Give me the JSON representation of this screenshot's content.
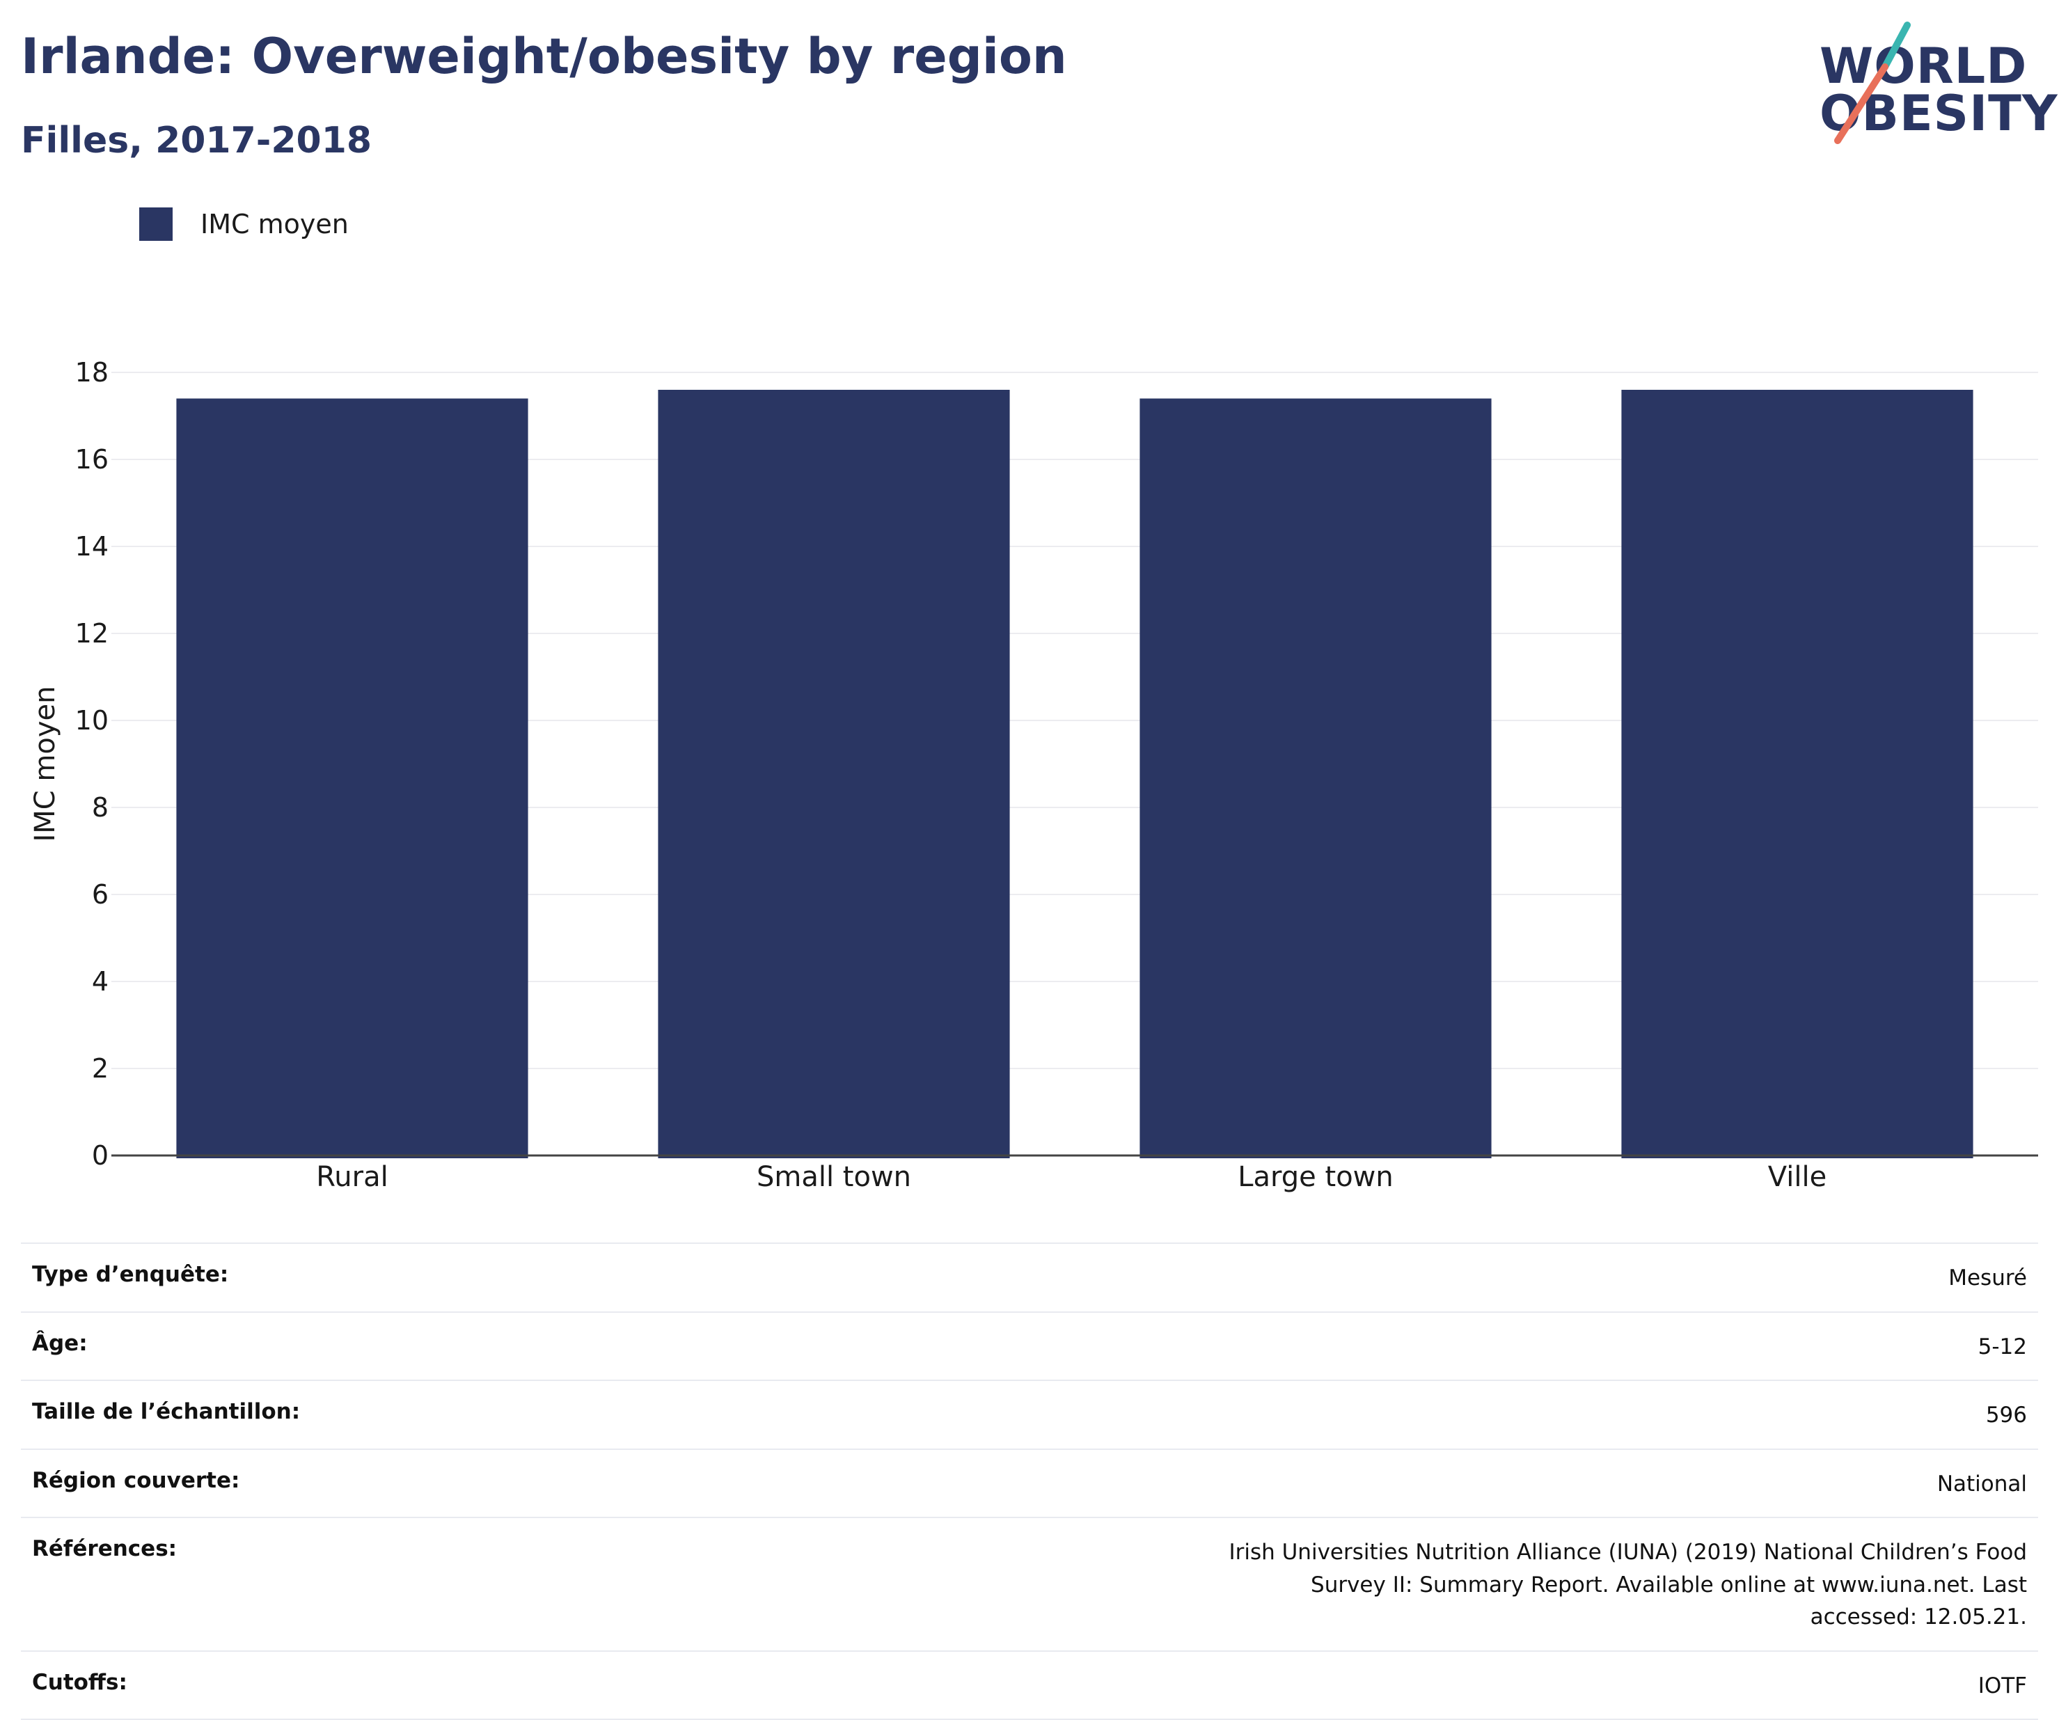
{
  "header": {
    "title": "Irlande: Overweight/obesity by region",
    "subtitle": "Filles, 2017-2018"
  },
  "logo": {
    "line1": "WORLD",
    "line2": "OBESITY",
    "colors": {
      "navy": "#2a3663",
      "teal": "#3ab5b0",
      "coral": "#e8705a"
    }
  },
  "legend": {
    "items": [
      {
        "label": "IMC moyen",
        "color": "#2a3663"
      }
    ],
    "placement": "top-left"
  },
  "chart_data": {
    "type": "bar",
    "categories": [
      "Rural",
      "Small town",
      "Large town",
      "Ville"
    ],
    "series": [
      {
        "name": "IMC moyen",
        "values": [
          17.4,
          17.6,
          17.4,
          17.6
        ],
        "color": "#2a3663"
      }
    ],
    "ylabel": "IMC moyen",
    "ylim": [
      0,
      18
    ],
    "yticks": [
      0,
      2,
      4,
      6,
      8,
      10,
      12,
      14,
      16,
      18
    ],
    "grid": true
  },
  "info": {
    "rows": [
      {
        "key": "Type d’enquête:",
        "value": "Mesuré"
      },
      {
        "key": "Âge:",
        "value": "5-12"
      },
      {
        "key": "Taille de l’échantillon:",
        "value": "596"
      },
      {
        "key": "Région couverte:",
        "value": "National"
      },
      {
        "key": "Références:",
        "value": "Irish Universities Nutrition Alliance (IUNA) (2019) National Children’s Food Survey II: Summary Report. Available online at www.iuna.net. Last accessed: 12.05.21."
      },
      {
        "key": "Cutoffs:",
        "value": "IOTF"
      }
    ]
  }
}
